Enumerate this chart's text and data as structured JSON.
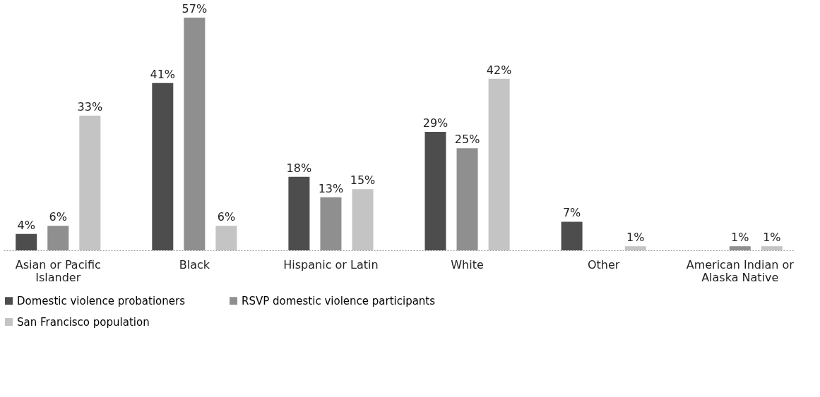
{
  "chart_data": {
    "type": "bar",
    "categories": [
      "Asian or Pacific Islander",
      "Black",
      "Hispanic or Latin",
      "White",
      "Other",
      "American Indian or Alaska Native"
    ],
    "series": [
      {
        "name": "Domestic violence probationers",
        "color": "#4d4d4d",
        "values": [
          4,
          41,
          18,
          29,
          7,
          null
        ],
        "value_labels": [
          "4%",
          "41%",
          "18%",
          "29%",
          "7%",
          null
        ]
      },
      {
        "name": "RSVP domestic violence participants",
        "color": "#8f8f8f",
        "values": [
          6,
          57,
          13,
          25,
          null,
          1
        ],
        "value_labels": [
          "6%",
          "57%",
          "13%",
          "25%",
          null,
          "1%"
        ]
      },
      {
        "name": "San Francisco population",
        "color": "#c4c4c4",
        "values": [
          33,
          6,
          15,
          42,
          1,
          1
        ],
        "value_labels": [
          "33%",
          "6%",
          "15%",
          "42%",
          "1%",
          "1%"
        ]
      }
    ],
    "legend": "bottom"
  }
}
